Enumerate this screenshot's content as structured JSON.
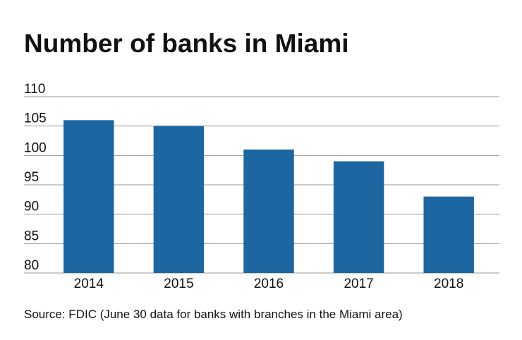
{
  "chart_data": {
    "type": "bar",
    "title": "Number of banks in Miami",
    "categories": [
      "2014",
      "2015",
      "2016",
      "2017",
      "2018"
    ],
    "values": [
      106,
      105,
      101,
      99,
      93
    ],
    "color": "#1c67a1",
    "ylim": [
      80,
      110
    ],
    "yticks": [
      80,
      85,
      90,
      95,
      100,
      105,
      110
    ],
    "grid": true,
    "source": "Source: FDIC (June 30 data for banks with branches in the Miami area)"
  }
}
